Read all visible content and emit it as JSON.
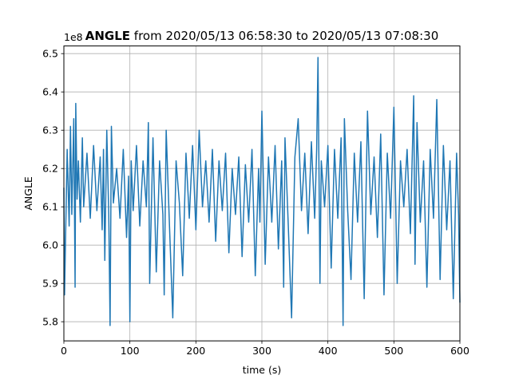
{
  "chart_data": {
    "type": "line",
    "title_bold": "ANGLE",
    "title_rest": " from 2020/05/13 06:58:30 to 2020/05/13 07:08:30",
    "xlabel": "time (s)",
    "ylabel": "ANGLE",
    "offset_label": "1e8",
    "xlim": [
      0,
      600
    ],
    "ylim": [
      5.75,
      6.52
    ],
    "xticks": [
      0,
      100,
      200,
      300,
      400,
      500,
      600
    ],
    "xtick_labels": [
      "0",
      "100",
      "200",
      "300",
      "400",
      "500",
      "600"
    ],
    "yticks": [
      5.8,
      5.9,
      6.0,
      6.1,
      6.2,
      6.3,
      6.4,
      6.5
    ],
    "ytick_labels": [
      "5.8",
      "5.9",
      "6.0",
      "6.1",
      "6.2",
      "6.3",
      "6.4",
      "6.5"
    ],
    "grid": true,
    "line_color": "#1f77b4",
    "series": [
      {
        "values_note_x": "time (s)",
        "x": [
          0,
          1,
          5,
          8,
          10,
          12,
          15,
          17,
          18,
          20,
          22,
          25,
          28,
          30,
          35,
          40,
          45,
          50,
          55,
          58,
          60,
          62,
          65,
          68,
          70,
          72,
          75,
          80,
          85,
          90,
          95,
          98,
          100,
          102,
          105,
          110,
          115,
          120,
          125,
          128,
          130,
          135,
          140,
          145,
          150,
          152,
          155,
          160,
          165,
          170,
          175,
          180,
          185,
          190,
          195,
          200,
          205,
          210,
          215,
          220,
          225,
          230,
          235,
          240,
          245,
          250,
          255,
          260,
          265,
          270,
          275,
          280,
          285,
          290,
          295,
          297,
          300,
          305,
          310,
          315,
          320,
          325,
          330,
          333,
          335,
          340,
          345,
          350,
          355,
          360,
          365,
          370,
          375,
          380,
          383,
          385,
          388,
          390,
          395,
          400,
          405,
          410,
          415,
          420,
          423,
          425,
          430,
          435,
          440,
          445,
          450,
          455,
          460,
          465,
          470,
          475,
          480,
          485,
          490,
          495,
          500,
          505,
          510,
          515,
          520,
          525,
          530,
          532,
          535,
          540,
          545,
          550,
          555,
          560,
          565,
          570,
          575,
          580,
          585,
          590,
          595,
          598,
          600
        ],
        "y": [
          6.15,
          5.87,
          6.25,
          6.05,
          6.31,
          6.08,
          6.33,
          5.89,
          6.37,
          6.12,
          6.22,
          6.06,
          6.28,
          6.1,
          6.24,
          6.07,
          6.26,
          6.09,
          6.23,
          6.04,
          6.25,
          5.96,
          6.3,
          6.08,
          5.79,
          6.31,
          6.11,
          6.2,
          6.07,
          6.25,
          6.02,
          6.18,
          5.8,
          6.22,
          6.09,
          6.26,
          6.05,
          6.22,
          6.1,
          6.32,
          5.9,
          6.28,
          5.93,
          6.22,
          6.08,
          5.87,
          6.3,
          6.05,
          5.81,
          6.22,
          6.11,
          5.92,
          6.24,
          6.07,
          6.26,
          6.04,
          6.3,
          6.1,
          6.22,
          6.06,
          6.25,
          6.01,
          6.22,
          6.09,
          6.24,
          5.98,
          6.2,
          6.08,
          6.23,
          5.97,
          6.21,
          6.06,
          6.25,
          5.92,
          6.2,
          6.06,
          6.35,
          5.95,
          6.23,
          6.06,
          6.26,
          5.99,
          6.22,
          5.89,
          6.28,
          6.05,
          5.81,
          6.23,
          6.33,
          6.09,
          6.24,
          6.03,
          6.27,
          6.07,
          6.25,
          6.49,
          5.9,
          6.22,
          6.1,
          6.26,
          5.94,
          6.25,
          6.07,
          6.28,
          5.79,
          6.33,
          6.09,
          5.91,
          6.24,
          6.06,
          6.27,
          5.86,
          6.35,
          6.08,
          6.23,
          6.02,
          6.29,
          5.87,
          6.24,
          6.07,
          6.36,
          5.9,
          6.22,
          6.1,
          6.25,
          6.03,
          6.39,
          5.95,
          6.32,
          6.06,
          6.22,
          5.89,
          6.25,
          6.07,
          6.38,
          5.91,
          6.26,
          6.04,
          6.22,
          5.86,
          6.24,
          6.08,
          5.85
        ]
      }
    ]
  }
}
